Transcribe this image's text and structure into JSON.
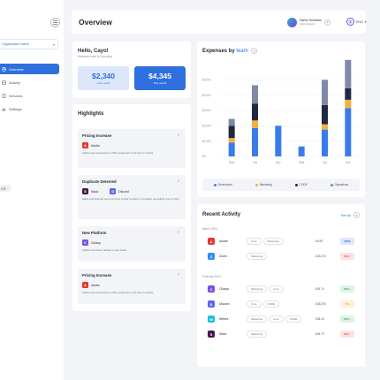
{
  "sidebar": {
    "organization": "Organization Name",
    "items": [
      {
        "label": "Overview",
        "icon": "pie-icon"
      },
      {
        "label": "Activity",
        "icon": "activity-icon"
      },
      {
        "label": "Services",
        "icon": "document-icon"
      },
      {
        "label": "Settings",
        "icon": "settings-icon"
      }
    ],
    "badge": "CR"
  },
  "header": {
    "title": "Overview",
    "user_name": "Name Surname",
    "user_role": "Administrator",
    "language": "ENG"
  },
  "greeting": {
    "title": "Hello, Cayo!",
    "subtitle": "Welcome back to Decoding",
    "stats": [
      {
        "value": "$2,340",
        "label": "Last month"
      },
      {
        "value": "$4,345",
        "label": "This month"
      }
    ]
  },
  "highlights": {
    "title": "Highlights",
    "items": [
      {
        "title": "Pricing Increase",
        "apps": [
          "Adobe"
        ],
        "text": "Adobe has increased by 20% compared to the last 3 months"
      },
      {
        "title": "Duplicate Detected",
        "apps": [
          "Slack",
          "Discord"
        ],
        "text": "Slack and Discord seem to have similar functions. Consider cancelling one of them"
      },
      {
        "title": "New Platform",
        "apps": [
          "Clickup"
        ],
        "text": "Clickup has been added to your stack"
      },
      {
        "title": "Pricing Increase",
        "apps": [
          "Adobe"
        ],
        "text": "Adobe has increased by 20% compared to the last 3 months"
      }
    ]
  },
  "chart_data": {
    "type": "bar",
    "title": "Expenses by",
    "title_accent": "team",
    "categories": [
      "Sept",
      "Oct",
      "Nov",
      "Sept",
      "Oct",
      "Nov"
    ],
    "ylim": [
      0,
      6000
    ],
    "yticks": [
      "$0",
      "$1,000",
      "$2,000",
      "$3,000",
      "$4,000",
      "$5,000"
    ],
    "series": [
      {
        "name": "Developers",
        "color": "#3b7be8",
        "values": [
          900,
          1850,
          2000,
          650,
          1750,
          3150
        ]
      },
      {
        "name": "Marketing",
        "color": "#f5b041",
        "values": [
          300,
          500,
          0,
          0,
          350,
          550
        ]
      },
      {
        "name": "CODE",
        "color": "#232842",
        "values": [
          800,
          1100,
          0,
          0,
          1250,
          750
        ]
      },
      {
        "name": "Operations",
        "color": "#7e8aa8",
        "values": [
          450,
          1200,
          0,
          0,
          1650,
          1850
        ]
      }
    ]
  },
  "activity": {
    "title": "Recent Activity",
    "see_all": "See All",
    "groups": [
      {
        "label": "March 2024",
        "rows": [
          {
            "app": "Adobe",
            "color": "#e8342f",
            "letter": "A",
            "tags": [
              "Core",
              "Marketing"
            ],
            "amount": "£4.99",
            "badge": "NEW",
            "badge_class": "b-blue"
          },
          {
            "app": "Zoom",
            "color": "#2d8cff",
            "letter": "Z",
            "tags": [
              "Marketing"
            ],
            "amount": "£432.00",
            "badge": "10% ↑",
            "badge_class": "b-red"
          }
        ]
      },
      {
        "label": "February 2024",
        "rows": [
          {
            "app": "Clickup",
            "color": "#7b4fe0",
            "letter": "C",
            "tags": [
              "Marketing",
              "Core"
            ],
            "amount": "£45.74",
            "badge": "15% ↓",
            "badge_class": "b-green"
          },
          {
            "app": "Discord",
            "color": "#5865f2",
            "letter": "D",
            "tags": [
              "Core",
              "CODE"
            ],
            "amount": "£432.90",
            "badge": "0%",
            "badge_class": "b-yellow"
          },
          {
            "app": "Webex",
            "color": "#1dbde0",
            "letter": "W",
            "tags": [
              "Marketing",
              "Core",
              "CODE"
            ],
            "amount": "£35.10",
            "badge": "15% ↓",
            "badge_class": "b-green"
          },
          {
            "app": "Slack",
            "color": "#4a154b",
            "letter": "S",
            "tags": [
              "Marketing"
            ],
            "amount": "£45.72",
            "badge": "10% ↑",
            "badge_class": "b-red"
          }
        ]
      }
    ]
  }
}
